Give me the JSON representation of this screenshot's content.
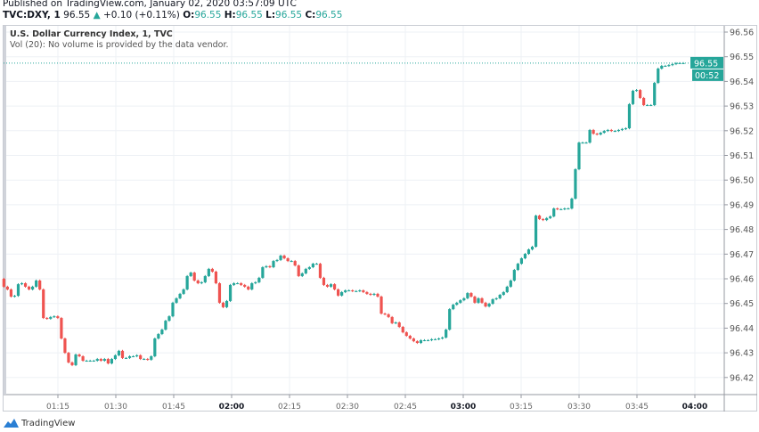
{
  "header": {
    "published": "Published on TradingView.com, January 02, 2020 03:57:09 UTC",
    "symbol": "TVC:DXY, 1",
    "last": "96.55",
    "change": "+0.10 (+0.11%)",
    "change_icon": "triangle-up-icon",
    "o_label": "O:",
    "o": "96.55",
    "h_label": "H:",
    "h": "96.55",
    "l_label": "L:",
    "l": "96.55",
    "c_label": "C:",
    "c": "96.55"
  },
  "legend": {
    "title": "U.S. Dollar Currency Index, 1, TVC",
    "volume_note": "Vol (20): No volume is provided by the data vendor."
  },
  "price_label": "96.55",
  "countdown": "00:52",
  "brand": "TradingView",
  "colors": {
    "up": "#26a69a",
    "down": "#ef5350",
    "grid": "#eef1f5"
  },
  "chart_data": {
    "type": "candlestick",
    "first_bar": "01:01",
    "last_bar": "03:57",
    "first_open": 96.46,
    "closes": [
      96.4568,
      96.4557,
      96.4528,
      96.4531,
      96.4578,
      96.4582,
      96.4568,
      96.4557,
      96.4568,
      96.4593,
      96.4557,
      96.4441,
      96.4438,
      96.4445,
      96.4448,
      96.4441,
      96.4358,
      96.43,
      96.4261,
      96.425,
      96.4293,
      96.4286,
      96.4268,
      96.4268,
      96.4268,
      96.4268,
      96.4275,
      96.4268,
      96.4275,
      96.4257,
      96.4275,
      96.429,
      96.4308,
      96.4279,
      96.4279,
      96.4286,
      96.4286,
      96.429,
      96.4275,
      96.4275,
      96.4272,
      96.4286,
      96.4358,
      96.4376,
      96.4394,
      96.443,
      96.4448,
      96.4503,
      96.4521,
      96.4539,
      96.4557,
      96.4611,
      96.4625,
      96.4593,
      96.4582,
      96.4586,
      96.4611,
      96.464,
      96.4629,
      96.4582,
      96.4503,
      96.4485,
      96.451,
      96.4575,
      96.4582,
      96.4582,
      96.4575,
      96.4568,
      96.4557,
      96.4582,
      96.4586,
      96.4604,
      96.4647,
      96.4651,
      96.4647,
      96.4672,
      96.4676,
      96.4694,
      96.4683,
      96.4672,
      96.4672,
      96.4654,
      96.4611,
      96.4622,
      96.464,
      96.4647,
      96.4661,
      96.4661,
      96.4604,
      96.4575,
      96.4568,
      96.4578,
      96.4557,
      96.4532,
      96.4546,
      96.4553,
      96.4553,
      96.455,
      96.455,
      96.4553,
      96.4546,
      96.4539,
      96.4535,
      96.4539,
      96.4528,
      96.4459,
      96.4456,
      96.4445,
      96.442,
      96.4423,
      96.4405,
      96.4383,
      96.4369,
      96.4358,
      96.4347,
      96.434,
      96.4351,
      96.4351,
      96.4351,
      96.4355,
      96.4355,
      96.4358,
      96.4362,
      96.4394,
      96.4477,
      96.4495,
      96.4503,
      96.4513,
      96.4521,
      96.4542,
      96.4528,
      96.4503,
      96.4521,
      96.4503,
      96.4488,
      96.4499,
      96.4517,
      96.4521,
      96.4535,
      96.4546,
      96.4568,
      96.4593,
      96.4636,
      96.4661,
      96.4683,
      96.4701,
      96.4719,
      96.473,
      96.4856,
      96.4842,
      96.4838,
      96.4846,
      96.4853,
      96.4885,
      96.4882,
      96.4882,
      96.4885,
      96.4885,
      96.4925,
      96.5044,
      96.5152,
      96.5152,
      96.5152,
      96.5203,
      96.5188,
      96.5185,
      96.5192,
      96.5199,
      96.5203,
      96.5199,
      96.5199,
      96.5203,
      96.5207,
      96.521,
      96.5308,
      96.5362,
      96.5365,
      96.5333,
      96.5304,
      96.5304,
      96.5304,
      96.5394,
      96.5452,
      96.5463,
      96.5463,
      96.5466,
      96.547,
      96.5474,
      96.5474,
      96.5474
    ],
    "current_price": 96.5474,
    "ylim": [
      96.415,
      96.565
    ],
    "y_ticks": [
      "96.56",
      "96.55",
      "96.54",
      "96.53",
      "96.52",
      "96.51",
      "96.50",
      "96.49",
      "96.48",
      "96.47",
      "96.46",
      "96.45",
      "96.44",
      "96.43",
      "96.42"
    ],
    "x_ticks": [
      {
        "label": "01:15",
        "major": false
      },
      {
        "label": "01:30",
        "major": false
      },
      {
        "label": "01:45",
        "major": false
      },
      {
        "label": "02:00",
        "major": true
      },
      {
        "label": "02:15",
        "major": false
      },
      {
        "label": "02:30",
        "major": false
      },
      {
        "label": "02:45",
        "major": false
      },
      {
        "label": "03:00",
        "major": true
      },
      {
        "label": "03:15",
        "major": false
      },
      {
        "label": "03:30",
        "major": false
      },
      {
        "label": "03:45",
        "major": false
      },
      {
        "label": "04:00",
        "major": true
      }
    ],
    "grid": true
  }
}
